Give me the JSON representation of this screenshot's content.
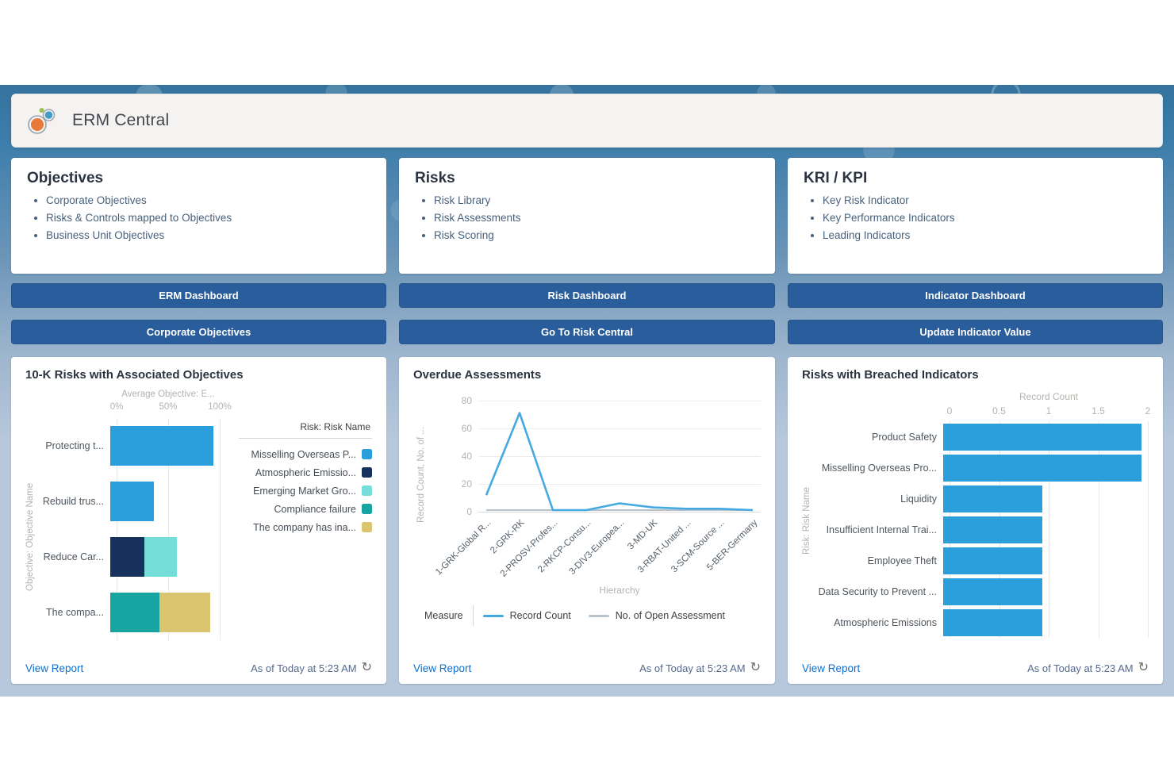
{
  "header": {
    "title": "ERM Central"
  },
  "info_cards": [
    {
      "title": "Objectives",
      "items": [
        "Corporate Objectives",
        "Risks & Controls mapped to Objectives",
        "Business Unit Objectives"
      ]
    },
    {
      "title": "Risks",
      "items": [
        "Risk Library",
        "Risk Assessments",
        "Risk Scoring"
      ]
    },
    {
      "title": "KRI / KPI",
      "items": [
        "Key Risk Indicator",
        "Key Performance Indicators",
        "Leading Indicators"
      ]
    }
  ],
  "action_buttons": [
    [
      "ERM Dashboard",
      "Corporate Objectives"
    ],
    [
      "Risk Dashboard",
      "Go To Risk Central"
    ],
    [
      "Indicator Dashboard",
      "Update Indicator Value"
    ]
  ],
  "footer": {
    "view_report": "View Report",
    "as_of": "As of Today at 5:23 AM"
  },
  "colors": {
    "button_blue": "#2A5D9B",
    "link_blue": "#0B70D1",
    "bar_blue": "#2B9FDB",
    "navy": "#16325C",
    "aqua": "#76DED9",
    "teal": "#16A5A0",
    "tan": "#DCC56F",
    "line_blue": "#45A9E2",
    "line_gray": "#B9C3CE"
  },
  "chart_data": [
    {
      "type": "stacked_bar_horizontal",
      "title": "10-K Risks with Associated Objectives",
      "axis_title": "Average Objective: E...",
      "xticks": [
        "0%",
        "50%",
        "100%"
      ],
      "xlim": [
        0,
        100
      ],
      "ylabel": "Objective: Objective Name",
      "legend_title": "Risk: Risk Name",
      "legend": [
        {
          "label": "Misselling Overseas P...",
          "color": "#2B9FDB"
        },
        {
          "label": "Atmospheric Emissio...",
          "color": "#16325C"
        },
        {
          "label": "Emerging Market Gro...",
          "color": "#76DED9"
        },
        {
          "label": "Compliance failure",
          "color": "#16A5A0"
        },
        {
          "label": "The company has ina...",
          "color": "#DCC56F"
        }
      ],
      "rows": [
        {
          "category": "Protecting t...",
          "segments": [
            {
              "name": "Misselling Overseas P...",
              "value": 100
            }
          ]
        },
        {
          "category": "Rebuild trus...",
          "segments": [
            {
              "name": "Misselling Overseas P...",
              "value": 42
            }
          ]
        },
        {
          "category": "Reduce Car...",
          "segments": [
            {
              "name": "Atmospheric Emissio...",
              "value": 33
            },
            {
              "name": "Emerging Market Gro...",
              "value": 32
            }
          ]
        },
        {
          "category": "The compa...",
          "segments": [
            {
              "name": "Compliance failure",
              "value": 48
            },
            {
              "name": "The company has ina...",
              "value": 49
            }
          ]
        }
      ]
    },
    {
      "type": "line",
      "title": "Overdue Assessments",
      "ylabel": "Record Count, No. of ...",
      "xlabel": "Hierarchy",
      "yticks": [
        0,
        20,
        40,
        60,
        80
      ],
      "ylim": [
        0,
        80
      ],
      "categories": [
        "1-GRK-Global R...",
        "2-GRK-RK",
        "2-PROSV-Profes...",
        "2-RKCP-Consu...",
        "3-DIV3-Europea...",
        "3-MD-UK",
        "3-RBAT-United ...",
        "3-SCM-Source ...",
        "5-BER-Germany"
      ],
      "legend_label": "Measure",
      "series": [
        {
          "name": "No. of Open Assessment",
          "color": "#B9C3CE",
          "values": [
            0,
            0,
            0,
            0,
            0,
            0,
            0,
            0,
            0
          ]
        },
        {
          "name": "Record Count",
          "color": "#45A9E2",
          "values": [
            11,
            72,
            0,
            0,
            5,
            2,
            1,
            1,
            0
          ]
        }
      ]
    },
    {
      "type": "bar_horizontal",
      "title": "Risks with Breached Indicators",
      "axis_title": "Record Count",
      "xticks": [
        "0",
        "0.5",
        "1",
        "1.5",
        "2"
      ],
      "xlim": [
        0,
        2
      ],
      "ylabel": "Risk: Risk Name",
      "bar_color": "#2B9FDB",
      "categories": [
        "Product Safety",
        "Misselling Overseas Pro...",
        "Liquidity",
        "Insufficient Internal Trai...",
        "Employee Theft",
        "Data Security to Prevent ...",
        "Atmospheric Emissions"
      ],
      "values": [
        2,
        2,
        1,
        1,
        1,
        1,
        1
      ]
    }
  ]
}
